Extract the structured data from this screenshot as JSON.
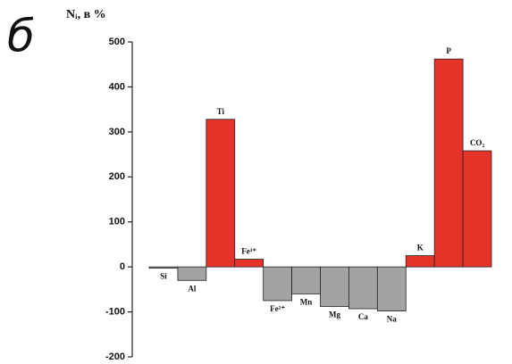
{
  "chart_data": {
    "type": "bar",
    "panel_label": "б",
    "y_axis_label": "Nᵢ, в %",
    "categories": [
      "Si",
      "Al",
      "Ti",
      "Fe³⁺",
      "Fe²⁺",
      "Mn",
      "Mg",
      "Ca",
      "Na",
      "K",
      "P",
      "CO₂"
    ],
    "values": [
      -3,
      -30,
      328,
      17,
      -75,
      -60,
      -88,
      -93,
      -98,
      25,
      462,
      258
    ],
    "positive_color": "#e6332a",
    "negative_color": "#a3a3a3",
    "ylim": [
      -200,
      500
    ],
    "yticks": [
      -200,
      -100,
      0,
      100,
      200,
      300,
      400,
      500
    ],
    "grid": false
  }
}
